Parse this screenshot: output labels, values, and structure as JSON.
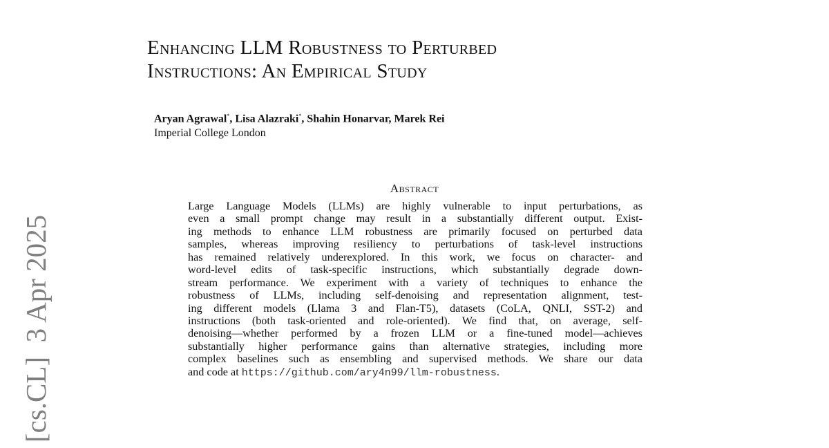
{
  "title_lines": [
    "Enhancing LLM Robustness to Perturbed",
    "Instructions: An Empirical Study"
  ],
  "authors": [
    {
      "name": "Aryan Agrawal",
      "mark": "*"
    },
    {
      "name": "Lisa Alazraki",
      "mark": "*"
    },
    {
      "name": "Shahin Honarvar",
      "mark": ""
    },
    {
      "name": "Marek Rei",
      "mark": ""
    }
  ],
  "affiliation": "Imperial College London",
  "abstract_heading": "Abstract",
  "abstract_lines": [
    "Large Language Models (LLMs) are highly vulnerable to input perturbations, as",
    "even a small prompt change may result in a substantially different output. Exist-",
    "ing methods to enhance LLM robustness are primarily focused on perturbed data",
    "samples, whereas improving resiliency to perturbations of task-level instructions",
    "has remained relatively underexplored. In this work, we focus on character- and",
    "word-level edits of task-specific instructions, which substantially degrade down-",
    "stream performance. We experiment with a variety of techniques to enhance the",
    "robustness of LLMs, including self-denoising and representation alignment, test-",
    "ing different models (Llama 3 and Flan-T5), datasets (CoLA, QNLI, SST-2) and",
    "instructions (both task-oriented and role-oriented). We find that, on average, self-",
    "denoising—whether performed by a frozen LLM or a fine-tuned model—achieves",
    "substantially higher performance gains than alternative strategies, including more",
    "complex baselines such as ensembling and supervised methods. We share our data"
  ],
  "abstract_last": {
    "prefix": "and code at ",
    "url": "https://github.com/ary4n99/llm-robustness",
    "suffix": "."
  },
  "arxiv_stamp": "[cs.CL]  3 Apr 2025"
}
